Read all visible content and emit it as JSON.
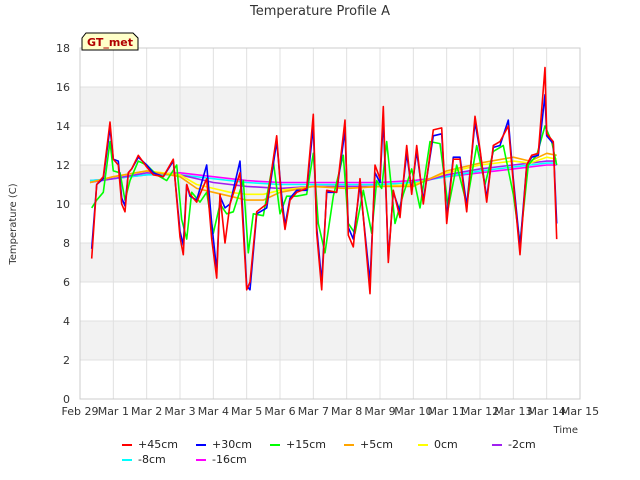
{
  "chart_data": {
    "type": "line",
    "title": "Temperature Profile A",
    "xlabel": "Time",
    "ylabel": "Temperature (C)",
    "ylim": [
      0,
      18
    ],
    "yticks": [
      0,
      2,
      4,
      6,
      8,
      10,
      12,
      14,
      16,
      18
    ],
    "xlim": [
      0,
      15
    ],
    "xticks": [
      {
        "v": 0,
        "label": "Feb 29"
      },
      {
        "v": 1,
        "label": "Mar 1"
      },
      {
        "v": 2,
        "label": "Mar 2"
      },
      {
        "v": 3,
        "label": "Mar 3"
      },
      {
        "v": 4,
        "label": "Mar 4"
      },
      {
        "v": 5,
        "label": "Mar 5"
      },
      {
        "v": 6,
        "label": "Mar 6"
      },
      {
        "v": 7,
        "label": "Mar 7"
      },
      {
        "v": 8,
        "label": "Mar 8"
      },
      {
        "v": 9,
        "label": "Mar 9"
      },
      {
        "v": 10,
        "label": "Mar 10"
      },
      {
        "v": 11,
        "label": "Mar 11"
      },
      {
        "v": 12,
        "label": "Mar 12"
      },
      {
        "v": 13,
        "label": "Mar 13"
      },
      {
        "v": 14,
        "label": "Mar 14"
      },
      {
        "v": 15,
        "label": "Mar 15"
      }
    ],
    "grid": true,
    "banded_background": true,
    "annotation": "GT_met",
    "legend_position": "bottom",
    "series": [
      {
        "name": "+45cm",
        "color": "#ff0000",
        "x": [
          0.35,
          0.5,
          0.7,
          0.9,
          1.0,
          1.15,
          1.25,
          1.35,
          1.45,
          1.55,
          1.75,
          2.0,
          2.2,
          2.5,
          2.8,
          3.0,
          3.1,
          3.2,
          3.3,
          3.5,
          3.8,
          3.95,
          4.1,
          4.2,
          4.35,
          4.5,
          4.8,
          5.0,
          5.1,
          5.3,
          5.6,
          5.9,
          6.05,
          6.15,
          6.3,
          6.5,
          6.8,
          7.0,
          7.1,
          7.25,
          7.4,
          7.7,
          7.95,
          8.05,
          8.2,
          8.4,
          8.7,
          8.85,
          9.0,
          9.1,
          9.25,
          9.4,
          9.6,
          9.8,
          9.95,
          10.1,
          10.3,
          10.6,
          10.85,
          11.0,
          11.2,
          11.4,
          11.6,
          11.85,
          12.0,
          12.2,
          12.4,
          12.6,
          12.85,
          13.0,
          13.2,
          13.4,
          13.55,
          13.75,
          13.95,
          14.0,
          14.2,
          14.3
        ],
        "y": [
          7.2,
          11.0,
          11.4,
          14.2,
          12.3,
          12.0,
          10.0,
          9.6,
          11.6,
          11.8,
          12.5,
          11.9,
          11.5,
          11.4,
          12.3,
          8.3,
          7.4,
          11.0,
          10.5,
          10.1,
          11.3,
          8.2,
          6.2,
          10.5,
          8.0,
          10.0,
          11.6,
          5.6,
          6.0,
          9.6,
          10.0,
          13.5,
          10.0,
          8.7,
          10.2,
          10.6,
          10.8,
          14.6,
          8.5,
          5.6,
          10.7,
          10.6,
          14.3,
          8.4,
          7.8,
          11.3,
          5.4,
          12.0,
          11.3,
          15.0,
          7.0,
          10.7,
          9.3,
          13.0,
          10.5,
          13.0,
          10.0,
          13.8,
          13.9,
          9.0,
          12.3,
          12.3,
          9.6,
          14.5,
          12.8,
          10.1,
          13.0,
          13.2,
          14.0,
          11.1,
          7.4,
          12.0,
          12.5,
          12.6,
          17.0,
          13.6,
          13.2,
          8.2
        ]
      },
      {
        "name": "+30cm",
        "color": "#0000ff",
        "x": [
          0.35,
          0.5,
          0.7,
          0.9,
          1.0,
          1.15,
          1.25,
          1.35,
          1.45,
          1.55,
          1.75,
          2.0,
          2.2,
          2.5,
          2.8,
          3.0,
          3.1,
          3.2,
          3.3,
          3.5,
          3.8,
          3.95,
          4.1,
          4.2,
          4.35,
          4.5,
          4.8,
          5.0,
          5.1,
          5.3,
          5.6,
          5.9,
          6.05,
          6.15,
          6.3,
          6.5,
          6.8,
          7.0,
          7.1,
          7.25,
          7.4,
          7.7,
          7.95,
          8.05,
          8.2,
          8.4,
          8.7,
          8.85,
          9.0,
          9.1,
          9.25,
          9.4,
          9.6,
          9.8,
          9.95,
          10.1,
          10.3,
          10.6,
          10.85,
          11.0,
          11.2,
          11.4,
          11.6,
          11.85,
          12.0,
          12.2,
          12.4,
          12.6,
          12.85,
          13.0,
          13.2,
          13.4,
          13.55,
          13.75,
          13.95,
          14.0,
          14.2,
          14.3
        ],
        "y": [
          7.7,
          11.0,
          11.3,
          13.9,
          12.3,
          12.2,
          10.3,
          9.9,
          11.6,
          11.8,
          12.4,
          12.0,
          11.6,
          11.4,
          12.2,
          8.6,
          7.9,
          11.0,
          10.4,
          10.2,
          12.0,
          9.0,
          6.6,
          10.4,
          9.8,
          10.0,
          12.2,
          5.8,
          5.6,
          9.5,
          9.8,
          13.2,
          10.4,
          8.9,
          10.3,
          10.7,
          10.7,
          14.0,
          8.8,
          6.0,
          10.6,
          10.6,
          13.8,
          8.8,
          8.2,
          11.0,
          6.0,
          11.6,
          11.1,
          14.4,
          7.2,
          10.6,
          9.6,
          12.6,
          10.7,
          12.7,
          10.2,
          13.5,
          13.6,
          9.3,
          12.4,
          12.4,
          9.9,
          14.2,
          12.7,
          10.3,
          12.9,
          13.0,
          14.3,
          11.3,
          7.8,
          12.0,
          12.4,
          12.5,
          15.6,
          13.5,
          13.1,
          9.0
        ]
      },
      {
        "name": "+15cm",
        "color": "#00ff00",
        "x": [
          0.35,
          0.5,
          0.7,
          0.9,
          1.0,
          1.2,
          1.35,
          1.5,
          1.75,
          2.0,
          2.3,
          2.6,
          2.9,
          3.05,
          3.2,
          3.35,
          3.6,
          3.8,
          4.0,
          4.2,
          4.4,
          4.6,
          4.9,
          5.05,
          5.2,
          5.5,
          5.8,
          6.0,
          6.2,
          6.5,
          6.8,
          7.0,
          7.15,
          7.35,
          7.6,
          7.9,
          8.05,
          8.25,
          8.5,
          8.75,
          8.9,
          9.05,
          9.2,
          9.45,
          9.7,
          9.95,
          10.2,
          10.5,
          10.8,
          11.05,
          11.3,
          11.6,
          11.9,
          12.15,
          12.4,
          12.7,
          13.0,
          13.2,
          13.45,
          13.7,
          13.95,
          14.15,
          14.3
        ],
        "y": [
          9.8,
          10.2,
          10.6,
          13.2,
          11.7,
          11.6,
          10.2,
          11.2,
          12.2,
          12.0,
          11.5,
          11.2,
          12.0,
          9.2,
          8.2,
          10.6,
          10.1,
          10.6,
          8.5,
          10.0,
          9.5,
          9.6,
          11.2,
          7.5,
          9.5,
          9.4,
          12.2,
          9.5,
          10.4,
          10.4,
          10.5,
          12.6,
          9.0,
          7.5,
          10.4,
          12.5,
          9.0,
          8.5,
          10.7,
          8.5,
          11.2,
          10.8,
          13.2,
          9.0,
          10.5,
          11.8,
          9.8,
          13.2,
          13.1,
          9.8,
          12.0,
          10.0,
          13.0,
          11.0,
          12.7,
          13.0,
          10.5,
          8.0,
          12.0,
          12.5,
          14.0,
          13.2,
          12.0
        ]
      },
      {
        "name": "+5cm",
        "color": "#ffa500",
        "x": [
          0.3,
          1,
          2,
          3,
          3.5,
          4,
          4.5,
          5,
          5.5,
          6,
          7,
          8,
          9,
          10,
          11,
          12,
          13,
          13.5,
          14,
          14.3
        ],
        "y": [
          11.1,
          11.4,
          11.7,
          11.4,
          10.8,
          10.6,
          10.4,
          10.2,
          10.2,
          10.6,
          10.9,
          10.8,
          10.9,
          10.9,
          11.7,
          12.1,
          12.4,
          12.2,
          12.6,
          12.5
        ]
      },
      {
        "name": "0cm",
        "color": "#ffff00",
        "x": [
          0.3,
          1,
          2,
          3,
          3.5,
          4,
          4.5,
          5,
          5.5,
          6,
          7,
          8,
          9,
          10,
          11,
          12,
          13,
          13.5,
          14,
          14.3
        ],
        "y": [
          11.1,
          11.4,
          11.7,
          11.5,
          11.0,
          10.8,
          10.6,
          10.5,
          10.5,
          10.7,
          10.9,
          10.8,
          10.9,
          11.0,
          11.6,
          12.0,
          12.2,
          12.1,
          12.4,
          12.3
        ]
      },
      {
        "name": "-2cm",
        "color": "#a020f0",
        "x": [
          0.3,
          1,
          2,
          3,
          4,
          5,
          6,
          7,
          8,
          9,
          10,
          11,
          12,
          13,
          14,
          14.3
        ],
        "y": [
          11.1,
          11.3,
          11.6,
          11.5,
          11.1,
          10.9,
          10.8,
          10.9,
          10.9,
          10.9,
          11.0,
          11.5,
          11.8,
          12.0,
          12.2,
          12.2
        ]
      },
      {
        "name": "-8cm",
        "color": "#00ffff",
        "x": [
          0.3,
          1,
          2,
          3,
          4,
          5,
          6,
          7,
          8,
          9,
          10,
          11,
          12,
          13,
          14,
          14.3
        ],
        "y": [
          11.2,
          11.3,
          11.5,
          11.5,
          11.3,
          11.1,
          11.0,
          11.0,
          11.0,
          11.0,
          11.1,
          11.4,
          11.7,
          11.9,
          12.1,
          12.1
        ]
      },
      {
        "name": "-16cm",
        "color": "#ff00ff",
        "x": [
          0.3,
          1,
          2,
          3,
          4,
          5,
          6,
          7,
          8,
          9,
          10,
          11,
          12,
          13,
          14,
          14.3
        ],
        "y": [
          11.2,
          11.3,
          11.5,
          11.6,
          11.4,
          11.2,
          11.1,
          11.1,
          11.1,
          11.1,
          11.2,
          11.4,
          11.6,
          11.8,
          12.0,
          12.0
        ]
      }
    ]
  }
}
